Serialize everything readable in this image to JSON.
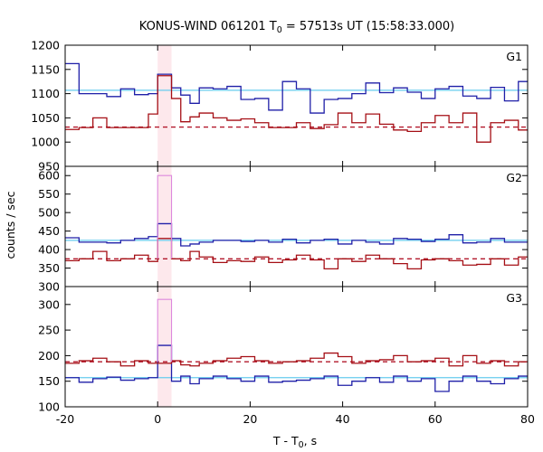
{
  "chart_data": {
    "type": "line",
    "title": {
      "prefix": "KONUS-WIND 061201 T",
      "sub": "0",
      "suffix": " = 57513s UT (15:58:33.000)"
    },
    "xlabel": {
      "prefix": "T - T",
      "sub": "0",
      "suffix": ", s"
    },
    "ylabel": "counts / sec",
    "xlim": [
      -20,
      80
    ],
    "xticks": [
      -20,
      0,
      20,
      40,
      60,
      80
    ],
    "highlight": {
      "x0": 0,
      "x1": 3
    },
    "edges": [
      -20,
      -17,
      -14,
      -11,
      -8,
      -5,
      -2,
      0,
      3,
      5,
      7,
      9,
      12,
      15,
      18,
      21,
      24,
      27,
      30,
      33,
      36,
      39,
      42,
      45,
      48,
      51,
      54,
      57,
      60,
      63,
      66,
      69,
      72,
      75,
      78,
      80
    ],
    "colors": {
      "lc1": "#1f1fa8",
      "lc2": "#a50f15",
      "bg1": "#66ccee",
      "bg2": "#b2182b",
      "pink_hist": "#dd88dd",
      "pink_line": "#e79bd8",
      "cyan_hist": "#88ccee",
      "band": "#fde8ec"
    },
    "panels": [
      {
        "label": "G1",
        "ylim": [
          950,
          1200
        ],
        "yticks": [
          950,
          1000,
          1050,
          1100,
          1150,
          1200
        ],
        "series": [
          {
            "role": "blue",
            "values": [
              1162,
              1100,
              1100,
              1094,
              1110,
              1098,
              1100,
              1140,
              1112,
              1097,
              1080,
              1112,
              1110,
              1115,
              1088,
              1090,
              1066,
              1125,
              1110,
              1060,
              1088,
              1090,
              1100,
              1122,
              1102,
              1112,
              1103,
              1090,
              1110,
              1115,
              1095,
              1090,
              1113,
              1085,
              1125
            ]
          },
          {
            "role": "red",
            "values": [
              1026,
              1030,
              1050,
              1030,
              1030,
              1030,
              1058,
              1137,
              1090,
              1042,
              1052,
              1060,
              1050,
              1045,
              1048,
              1040,
              1030,
              1030,
              1040,
              1028,
              1036,
              1060,
              1040,
              1058,
              1037,
              1025,
              1022,
              1040,
              1055,
              1040,
              1060,
              1000,
              1040,
              1045,
              1025
            ]
          }
        ],
        "bg_blue": 1107,
        "bg_red": 1031
      },
      {
        "label": "G2",
        "ylim": [
          300,
          625
        ],
        "yticks": [
          300,
          350,
          400,
          450,
          500,
          550,
          600
        ],
        "series": [
          {
            "role": "blue",
            "values": [
              432,
              420,
              420,
              418,
              425,
              430,
              435,
              470,
              430,
              410,
              415,
              420,
              425,
              425,
              422,
              425,
              420,
              428,
              418,
              425,
              428,
              415,
              425,
              420,
              415,
              430,
              428,
              422,
              428,
              440,
              418,
              420,
              430,
              420,
              420
            ]
          },
          {
            "role": "red",
            "values": [
              370,
              375,
              395,
              370,
              375,
              385,
              368,
              430,
              375,
              370,
              395,
              380,
              365,
              370,
              368,
              380,
              365,
              372,
              385,
              372,
              348,
              375,
              368,
              385,
              375,
              362,
              348,
              372,
              375,
              370,
              358,
              360,
              375,
              358,
              380
            ]
          },
          {
            "role": "pink",
            "values": [
              null,
              null,
              null,
              null,
              null,
              null,
              null,
              600,
              null
            ]
          }
        ],
        "bg_blue": 425,
        "bg_red": 375
      },
      {
        "label": "G3",
        "ylim": [
          100,
          335
        ],
        "yticks": [
          100,
          150,
          200,
          250,
          300
        ],
        "series": [
          {
            "role": "blue",
            "values": [
              157,
              148,
              155,
              158,
              152,
              155,
              157,
              220,
              150,
              160,
              145,
              155,
              160,
              155,
              150,
              160,
              148,
              150,
              152,
              155,
              160,
              142,
              150,
              157,
              148,
              160,
              150,
              155,
              130,
              150,
              160,
              150,
              145,
              155,
              160
            ]
          },
          {
            "role": "red",
            "values": [
              185,
              190,
              195,
              188,
              180,
              190,
              185,
              185,
              190,
              182,
              180,
              185,
              190,
              195,
              198,
              190,
              185,
              188,
              190,
              195,
              205,
              198,
              185,
              190,
              192,
              200,
              188,
              190,
              195,
              180,
              200,
              185,
              190,
              180,
              188
            ]
          },
          {
            "role": "pink",
            "values": [
              null,
              null,
              null,
              null,
              null,
              null,
              null,
              310,
              null
            ]
          }
        ],
        "bg_blue": 157,
        "bg_red": 188
      }
    ]
  }
}
